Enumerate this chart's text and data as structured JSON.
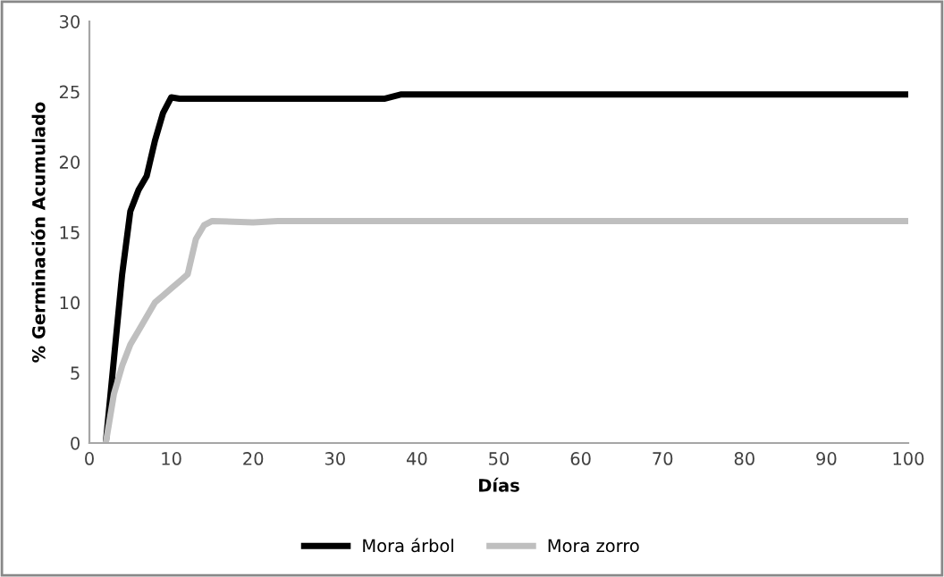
{
  "chart_data": {
    "type": "line",
    "xlabel": "Días",
    "ylabel": "% Germinación Acumulado",
    "xlim": [
      0,
      100
    ],
    "xticks": [
      0,
      10,
      20,
      30,
      40,
      50,
      60,
      70,
      80,
      90,
      100
    ],
    "ylim": [
      0,
      30
    ],
    "yticks": [
      0,
      5,
      10,
      15,
      20,
      25,
      30
    ],
    "grid": false,
    "legend": "bottom",
    "marker": "none",
    "line_style": "solid",
    "series": [
      {
        "name": "Mora árbol",
        "color": "#000000",
        "x": [
          2,
          3,
          4,
          5,
          6,
          7,
          8,
          9,
          10,
          11,
          36,
          38,
          100
        ],
        "values": [
          0,
          6,
          12,
          16.5,
          18,
          19,
          21.5,
          23.5,
          24.6,
          24.5,
          24.5,
          24.8,
          24.8
        ]
      },
      {
        "name": "Mora zorro",
        "color": "#bfbfbf",
        "x": [
          2,
          3,
          4,
          5,
          6,
          7,
          8,
          9,
          10,
          11,
          12,
          13,
          14,
          15,
          20,
          23,
          100
        ],
        "values": [
          0,
          3.5,
          5.5,
          7,
          8,
          9,
          10,
          10.5,
          11,
          11.5,
          12,
          14.5,
          15.5,
          15.8,
          15.7,
          15.8,
          15.8
        ]
      }
    ]
  }
}
